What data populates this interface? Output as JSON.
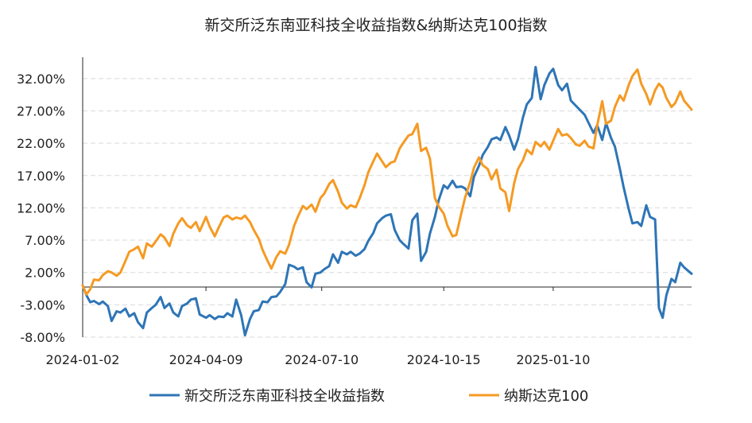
{
  "chart_data": {
    "type": "line",
    "title": "新交所泛东南亚科技全收益指数&纳斯达克100指数",
    "xlabel": "",
    "ylabel": "",
    "x_start": "2024-01-02",
    "x_end": "2025-04-30",
    "x_ticks": [
      "2024-01-02",
      "2024-04-09",
      "2024-07-10",
      "2024-10-15",
      "2025-01-10"
    ],
    "y_ticks": [
      "32.00%",
      "27.00%",
      "22.00%",
      "17.00%",
      "12.00%",
      "7.00%",
      "2.00%",
      "-3.00%",
      "-8.00%"
    ],
    "ylim": [
      -8,
      35.3
    ],
    "y_unit": "%",
    "grid": "horizontal-dashed",
    "legend_position": "bottom",
    "series": [
      {
        "name": "新交所泛东南亚科技全收益指数",
        "color": "#2e75b6",
        "points": [
          [
            "2024-01-02",
            0.0
          ],
          [
            "2024-01-05",
            -1.5
          ],
          [
            "2024-01-08",
            -2.6
          ],
          [
            "2024-01-11",
            -2.4
          ],
          [
            "2024-01-15",
            -2.9
          ],
          [
            "2024-01-18",
            -2.5
          ],
          [
            "2024-01-22",
            -3.2
          ],
          [
            "2024-01-25",
            -5.5
          ],
          [
            "2024-01-29",
            -4.0
          ],
          [
            "2024-02-01",
            -4.2
          ],
          [
            "2024-02-05",
            -3.6
          ],
          [
            "2024-02-08",
            -4.8
          ],
          [
            "2024-02-12",
            -4.3
          ],
          [
            "2024-02-15",
            -5.7
          ],
          [
            "2024-02-19",
            -6.6
          ],
          [
            "2024-02-22",
            -4.2
          ],
          [
            "2024-02-26",
            -3.5
          ],
          [
            "2024-02-29",
            -3.0
          ],
          [
            "2024-03-04",
            -1.8
          ],
          [
            "2024-03-07",
            -3.5
          ],
          [
            "2024-03-11",
            -2.8
          ],
          [
            "2024-03-14",
            -4.2
          ],
          [
            "2024-03-18",
            -4.8
          ],
          [
            "2024-03-21",
            -3.2
          ],
          [
            "2024-03-25",
            -2.8
          ],
          [
            "2024-03-28",
            -2.2
          ],
          [
            "2024-04-01",
            -2.0
          ],
          [
            "2024-04-04",
            -4.5
          ],
          [
            "2024-04-09",
            -5.0
          ],
          [
            "2024-04-12",
            -4.6
          ],
          [
            "2024-04-16",
            -5.2
          ],
          [
            "2024-04-19",
            -4.8
          ],
          [
            "2024-04-23",
            -4.9
          ],
          [
            "2024-04-26",
            -4.3
          ],
          [
            "2024-04-30",
            -4.8
          ],
          [
            "2024-05-03",
            -2.2
          ],
          [
            "2024-05-07",
            -4.6
          ],
          [
            "2024-05-10",
            -7.7
          ],
          [
            "2024-05-14",
            -5.2
          ],
          [
            "2024-05-17",
            -4.0
          ],
          [
            "2024-05-21",
            -3.8
          ],
          [
            "2024-05-24",
            -2.5
          ],
          [
            "2024-05-28",
            -2.6
          ],
          [
            "2024-05-31",
            -1.8
          ],
          [
            "2024-06-04",
            -1.7
          ],
          [
            "2024-06-07",
            -1.0
          ],
          [
            "2024-06-11",
            0.2
          ],
          [
            "2024-06-14",
            3.2
          ],
          [
            "2024-06-18",
            2.9
          ],
          [
            "2024-06-21",
            2.5
          ],
          [
            "2024-06-25",
            2.8
          ],
          [
            "2024-06-28",
            0.5
          ],
          [
            "2024-07-02",
            -0.3
          ],
          [
            "2024-07-05",
            1.8
          ],
          [
            "2024-07-09",
            2.0
          ],
          [
            "2024-07-12",
            2.5
          ],
          [
            "2024-07-16",
            3.0
          ],
          [
            "2024-07-19",
            4.8
          ],
          [
            "2024-07-23",
            3.5
          ],
          [
            "2024-07-26",
            5.2
          ],
          [
            "2024-07-30",
            4.8
          ],
          [
            "2024-08-02",
            5.2
          ],
          [
            "2024-08-06",
            4.6
          ],
          [
            "2024-08-09",
            4.9
          ],
          [
            "2024-08-13",
            5.6
          ],
          [
            "2024-08-16",
            6.9
          ],
          [
            "2024-08-20",
            8.1
          ],
          [
            "2024-08-23",
            9.6
          ],
          [
            "2024-08-27",
            10.4
          ],
          [
            "2024-08-30",
            10.8
          ],
          [
            "2024-09-03",
            11.0
          ],
          [
            "2024-09-06",
            8.6
          ],
          [
            "2024-09-10",
            7.0
          ],
          [
            "2024-09-13",
            6.4
          ],
          [
            "2024-09-17",
            5.7
          ],
          [
            "2024-09-20",
            10.1
          ],
          [
            "2024-09-24",
            11.1
          ],
          [
            "2024-09-27",
            3.8
          ],
          [
            "2024-10-01",
            5.2
          ],
          [
            "2024-10-04",
            8.0
          ],
          [
            "2024-10-08",
            10.6
          ],
          [
            "2024-10-11",
            13.2
          ],
          [
            "2024-10-15",
            15.5
          ],
          [
            "2024-10-18",
            15.0
          ],
          [
            "2024-10-22",
            16.2
          ],
          [
            "2024-10-25",
            15.2
          ],
          [
            "2024-10-29",
            15.3
          ],
          [
            "2024-11-01",
            15.0
          ],
          [
            "2024-11-05",
            13.8
          ],
          [
            "2024-11-08",
            16.8
          ],
          [
            "2024-11-12",
            18.5
          ],
          [
            "2024-11-15",
            20.2
          ],
          [
            "2024-11-19",
            21.4
          ],
          [
            "2024-11-22",
            22.6
          ],
          [
            "2024-11-26",
            22.9
          ],
          [
            "2024-11-29",
            22.5
          ],
          [
            "2024-12-03",
            24.5
          ],
          [
            "2024-12-06",
            23.2
          ],
          [
            "2024-12-10",
            21.0
          ],
          [
            "2024-12-13",
            22.6
          ],
          [
            "2024-12-17",
            26.0
          ],
          [
            "2024-12-20",
            28.0
          ],
          [
            "2024-12-24",
            29.0
          ],
          [
            "2024-12-27",
            33.8
          ],
          [
            "2024-12-31",
            28.8
          ],
          [
            "2025-01-03",
            31.0
          ],
          [
            "2025-01-07",
            32.8
          ],
          [
            "2025-01-10",
            33.5
          ],
          [
            "2025-01-14",
            31.0
          ],
          [
            "2025-01-17",
            30.2
          ],
          [
            "2025-01-21",
            31.2
          ],
          [
            "2025-01-24",
            28.6
          ],
          [
            "2025-01-28",
            27.8
          ],
          [
            "2025-01-31",
            27.2
          ],
          [
            "2025-02-04",
            26.4
          ],
          [
            "2025-02-07",
            25.2
          ],
          [
            "2025-02-11",
            23.6
          ],
          [
            "2025-02-14",
            24.8
          ],
          [
            "2025-02-18",
            22.5
          ],
          [
            "2025-02-21",
            25.1
          ],
          [
            "2025-02-25",
            22.8
          ],
          [
            "2025-02-28",
            21.5
          ],
          [
            "2025-03-04",
            18.0
          ],
          [
            "2025-03-07",
            15.2
          ],
          [
            "2025-03-11",
            11.8
          ],
          [
            "2025-03-14",
            9.6
          ],
          [
            "2025-03-18",
            9.8
          ],
          [
            "2025-03-21",
            9.2
          ],
          [
            "2025-03-25",
            12.4
          ],
          [
            "2025-03-28",
            10.6
          ],
          [
            "2025-04-01",
            10.2
          ],
          [
            "2025-04-04",
            -3.5
          ],
          [
            "2025-04-07",
            -5.0
          ],
          [
            "2025-04-10",
            -1.5
          ],
          [
            "2025-04-14",
            1.0
          ],
          [
            "2025-04-17",
            0.5
          ],
          [
            "2025-04-21",
            3.5
          ],
          [
            "2025-04-24",
            2.8
          ],
          [
            "2025-04-30",
            1.8
          ]
        ]
      },
      {
        "name": "纳斯达克100",
        "color": "#f59a23",
        "points": [
          [
            "2024-01-02",
            0.0
          ],
          [
            "2024-01-05",
            -1.4
          ],
          [
            "2024-01-08",
            -0.6
          ],
          [
            "2024-01-11",
            0.9
          ],
          [
            "2024-01-15",
            0.8
          ],
          [
            "2024-01-18",
            1.6
          ],
          [
            "2024-01-22",
            2.2
          ],
          [
            "2024-01-25",
            2.0
          ],
          [
            "2024-01-29",
            1.5
          ],
          [
            "2024-02-01",
            2.0
          ],
          [
            "2024-02-05",
            3.8
          ],
          [
            "2024-02-08",
            5.2
          ],
          [
            "2024-02-12",
            5.6
          ],
          [
            "2024-02-15",
            6.0
          ],
          [
            "2024-02-19",
            4.2
          ],
          [
            "2024-02-22",
            6.5
          ],
          [
            "2024-02-26",
            6.0
          ],
          [
            "2024-02-29",
            6.8
          ],
          [
            "2024-03-04",
            7.9
          ],
          [
            "2024-03-07",
            7.4
          ],
          [
            "2024-03-11",
            6.1
          ],
          [
            "2024-03-14",
            8.0
          ],
          [
            "2024-03-18",
            9.6
          ],
          [
            "2024-03-21",
            10.4
          ],
          [
            "2024-03-25",
            9.3
          ],
          [
            "2024-03-28",
            8.9
          ],
          [
            "2024-04-01",
            9.8
          ],
          [
            "2024-04-04",
            8.4
          ],
          [
            "2024-04-09",
            10.6
          ],
          [
            "2024-04-12",
            9.1
          ],
          [
            "2024-04-16",
            7.6
          ],
          [
            "2024-04-19",
            8.9
          ],
          [
            "2024-04-23",
            10.5
          ],
          [
            "2024-04-26",
            10.8
          ],
          [
            "2024-04-30",
            10.2
          ],
          [
            "2024-05-03",
            10.5
          ],
          [
            "2024-05-07",
            10.3
          ],
          [
            "2024-05-10",
            10.8
          ],
          [
            "2024-05-14",
            9.8
          ],
          [
            "2024-05-17",
            8.6
          ],
          [
            "2024-05-21",
            7.2
          ],
          [
            "2024-05-24",
            5.5
          ],
          [
            "2024-05-28",
            3.8
          ],
          [
            "2024-05-31",
            2.6
          ],
          [
            "2024-06-04",
            4.4
          ],
          [
            "2024-06-07",
            5.3
          ],
          [
            "2024-06-11",
            4.9
          ],
          [
            "2024-06-14",
            6.3
          ],
          [
            "2024-06-18",
            9.2
          ],
          [
            "2024-06-21",
            10.6
          ],
          [
            "2024-06-25",
            12.3
          ],
          [
            "2024-06-28",
            11.8
          ],
          [
            "2024-07-02",
            12.5
          ],
          [
            "2024-07-05",
            11.4
          ],
          [
            "2024-07-09",
            13.5
          ],
          [
            "2024-07-12",
            14.2
          ],
          [
            "2024-07-16",
            15.7
          ],
          [
            "2024-07-19",
            16.3
          ],
          [
            "2024-07-23",
            14.5
          ],
          [
            "2024-07-26",
            12.8
          ],
          [
            "2024-07-30",
            11.9
          ],
          [
            "2024-08-02",
            12.4
          ],
          [
            "2024-08-06",
            12.1
          ],
          [
            "2024-08-09",
            13.4
          ],
          [
            "2024-08-13",
            15.5
          ],
          [
            "2024-08-16",
            17.5
          ],
          [
            "2024-08-20",
            19.2
          ],
          [
            "2024-08-23",
            20.4
          ],
          [
            "2024-08-27",
            19.2
          ],
          [
            "2024-08-30",
            18.3
          ],
          [
            "2024-09-03",
            19.0
          ],
          [
            "2024-09-06",
            19.2
          ],
          [
            "2024-09-10",
            21.2
          ],
          [
            "2024-09-13",
            22.1
          ],
          [
            "2024-09-17",
            23.2
          ],
          [
            "2024-09-20",
            23.4
          ],
          [
            "2024-09-24",
            25.0
          ],
          [
            "2024-09-27",
            20.8
          ],
          [
            "2024-10-01",
            21.3
          ],
          [
            "2024-10-04",
            19.6
          ],
          [
            "2024-10-08",
            13.5
          ],
          [
            "2024-10-11",
            12.2
          ],
          [
            "2024-10-15",
            11.1
          ],
          [
            "2024-10-18",
            9.2
          ],
          [
            "2024-10-22",
            7.6
          ],
          [
            "2024-10-25",
            7.8
          ],
          [
            "2024-10-29",
            11.2
          ],
          [
            "2024-11-01",
            13.6
          ],
          [
            "2024-11-05",
            16.0
          ],
          [
            "2024-11-08",
            18.2
          ],
          [
            "2024-11-12",
            19.8
          ],
          [
            "2024-11-15",
            18.6
          ],
          [
            "2024-11-19",
            18.0
          ],
          [
            "2024-11-22",
            16.4
          ],
          [
            "2024-11-26",
            17.9
          ],
          [
            "2024-11-29",
            15.0
          ],
          [
            "2024-12-03",
            14.4
          ],
          [
            "2024-12-06",
            11.5
          ],
          [
            "2024-12-10",
            15.8
          ],
          [
            "2024-12-13",
            18.0
          ],
          [
            "2024-12-17",
            19.4
          ],
          [
            "2024-12-20",
            21.0
          ],
          [
            "2024-12-24",
            20.3
          ],
          [
            "2024-12-27",
            22.2
          ],
          [
            "2024-12-31",
            21.5
          ],
          [
            "2025-01-03",
            22.2
          ],
          [
            "2025-01-07",
            21.0
          ],
          [
            "2025-01-10",
            22.4
          ],
          [
            "2025-01-14",
            24.2
          ],
          [
            "2025-01-17",
            23.2
          ],
          [
            "2025-01-21",
            23.4
          ],
          [
            "2025-01-24",
            22.8
          ],
          [
            "2025-01-28",
            21.8
          ],
          [
            "2025-01-31",
            21.6
          ],
          [
            "2025-02-04",
            22.4
          ],
          [
            "2025-02-07",
            21.5
          ],
          [
            "2025-02-11",
            21.2
          ],
          [
            "2025-02-14",
            24.8
          ],
          [
            "2025-02-18",
            28.5
          ],
          [
            "2025-02-21",
            25.0
          ],
          [
            "2025-02-25",
            25.5
          ],
          [
            "2025-02-28",
            27.6
          ],
          [
            "2025-03-04",
            29.4
          ],
          [
            "2025-03-07",
            28.6
          ],
          [
            "2025-03-11",
            31.0
          ],
          [
            "2025-03-14",
            32.4
          ],
          [
            "2025-03-18",
            33.4
          ],
          [
            "2025-03-21",
            31.2
          ],
          [
            "2025-03-25",
            29.6
          ],
          [
            "2025-03-28",
            28.0
          ],
          [
            "2025-04-01",
            30.2
          ],
          [
            "2025-04-04",
            31.2
          ],
          [
            "2025-04-07",
            30.6
          ],
          [
            "2025-04-10",
            29.0
          ],
          [
            "2025-04-14",
            27.6
          ],
          [
            "2025-04-17",
            28.2
          ],
          [
            "2025-04-21",
            30.0
          ],
          [
            "2025-04-24",
            28.6
          ],
          [
            "2025-04-30",
            27.2
          ]
        ]
      }
    ]
  }
}
